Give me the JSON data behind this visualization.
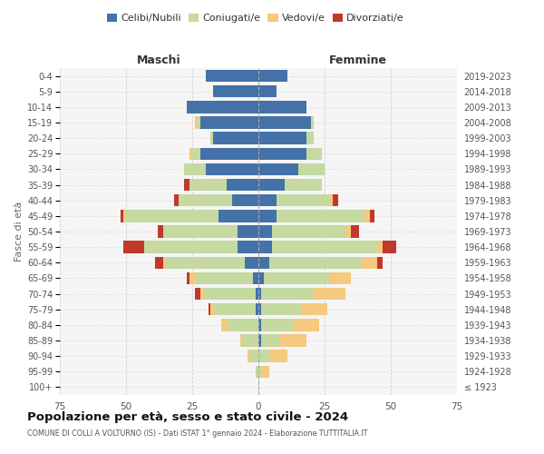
{
  "age_groups": [
    "100+",
    "95-99",
    "90-94",
    "85-89",
    "80-84",
    "75-79",
    "70-74",
    "65-69",
    "60-64",
    "55-59",
    "50-54",
    "45-49",
    "40-44",
    "35-39",
    "30-34",
    "25-29",
    "20-24",
    "15-19",
    "10-14",
    "5-9",
    "0-4"
  ],
  "birth_years": [
    "≤ 1923",
    "1924-1928",
    "1929-1933",
    "1934-1938",
    "1939-1943",
    "1944-1948",
    "1949-1953",
    "1954-1958",
    "1959-1963",
    "1964-1968",
    "1969-1973",
    "1974-1978",
    "1979-1983",
    "1984-1988",
    "1989-1993",
    "1994-1998",
    "1999-2003",
    "2004-2008",
    "2009-2013",
    "2014-2018",
    "2019-2023"
  ],
  "male": {
    "celibi": [
      0,
      0,
      0,
      0,
      0,
      1,
      1,
      2,
      5,
      8,
      8,
      15,
      10,
      12,
      20,
      22,
      17,
      22,
      27,
      17,
      20
    ],
    "coniugati": [
      0,
      1,
      3,
      6,
      12,
      16,
      20,
      22,
      30,
      35,
      28,
      35,
      20,
      14,
      8,
      3,
      1,
      1,
      0,
      0,
      0
    ],
    "vedovi": [
      0,
      0,
      1,
      1,
      2,
      1,
      1,
      2,
      1,
      0,
      0,
      1,
      0,
      0,
      0,
      1,
      0,
      1,
      0,
      0,
      0
    ],
    "divorziati": [
      0,
      0,
      0,
      0,
      0,
      1,
      2,
      1,
      3,
      8,
      2,
      1,
      2,
      2,
      0,
      0,
      0,
      0,
      0,
      0,
      0
    ]
  },
  "female": {
    "nubili": [
      0,
      0,
      0,
      1,
      1,
      1,
      1,
      2,
      4,
      5,
      5,
      7,
      7,
      10,
      15,
      18,
      18,
      20,
      18,
      7,
      11
    ],
    "coniugate": [
      0,
      1,
      4,
      7,
      12,
      15,
      20,
      25,
      35,
      40,
      28,
      33,
      20,
      14,
      10,
      6,
      3,
      1,
      0,
      0,
      0
    ],
    "vedove": [
      0,
      3,
      7,
      10,
      10,
      10,
      12,
      8,
      6,
      2,
      2,
      2,
      1,
      0,
      0,
      0,
      0,
      0,
      0,
      0,
      0
    ],
    "divorziate": [
      0,
      0,
      0,
      0,
      0,
      0,
      0,
      0,
      2,
      5,
      3,
      2,
      2,
      0,
      0,
      0,
      0,
      0,
      0,
      0,
      0
    ]
  },
  "colors": {
    "celibi": "#4472a8",
    "coniugati": "#c5d9a0",
    "vedovi": "#f5c97f",
    "divorziati": "#c0392b"
  },
  "xlim": 75,
  "title": "Popolazione per età, sesso e stato civile - 2024",
  "subtitle": "COMUNE DI COLLI A VOLTURNO (IS) - Dati ISTAT 1° gennaio 2024 - Elaborazione TUTTITALIA.IT",
  "ylabel_left": "Fasce di età",
  "xlabel_male": "Maschi",
  "xlabel_female": "Femmine",
  "bg_color": "#f5f5f5",
  "grid_color": "#cccccc"
}
